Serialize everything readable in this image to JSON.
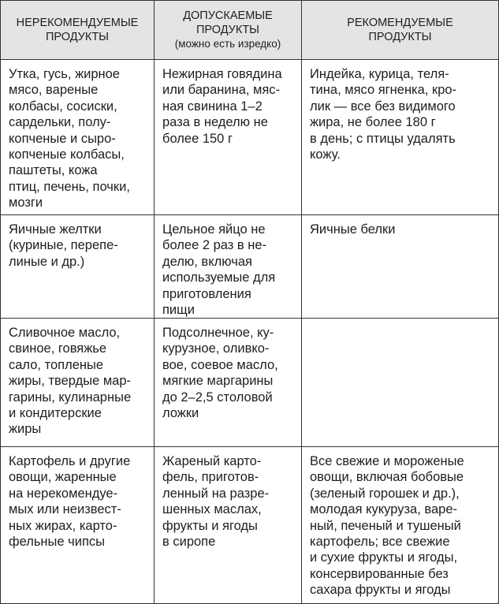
{
  "table": {
    "columns": [
      {
        "title": "НЕРЕКОМЕНДУЕМЫЕ\nПРОДУКТЫ"
      },
      {
        "title": "ДОПУСКАЕМЫЕ\nПРОДУКТЫ",
        "note": "(можно есть изредко)"
      },
      {
        "title": "РЕКОМЕНДУЕМЫЕ\nПРОДУКТЫ"
      }
    ],
    "rows": [
      [
        "Утка, гусь, жирное\nмясо, вареные\nколбасы, сосиски,\nсардельки, полу-\nкопченые и сыро-\nкопченые колбасы,\nпаштеты, кожа\nптиц, печень, почки,\nмозги",
        "Нежирная говядина\nили баранина, мяс-\nная свинина 1–2\nраза в неделю не\nболее 150 г",
        "Индейка, курица, теля-\nтина, мясо ягненка, кро-\nлик — все без видимого\nжира, не более 180 г\nв день; с птицы удалять\nкожу."
      ],
      [
        "Яичные желтки\n(куриные, перепе-\nлиные и др.)",
        "Цельное яйцо не\nболее 2 раз в не-\nделю, включая\nиспользуемые для\nприготовления\nпищи",
        "Яичные белки"
      ],
      [
        "Сливочное масло,\nсвиное, говяжье\nсало, топленые\nжиры, твердые мар-\nгарины, кулинарные\nи кондитерские\nжиры",
        "Подсолнечное, ку-\nкурузное, оливко-\nвое, соевое масло,\nмягкие маргарины\nдо 2–2,5 столовой\nложки"
      ],
      [
        "Картофель и другие\nовощи, жаренные\nна нерекомендуе-\nмых или неизвест-\nных жирах, карто-\nфельные чипсы",
        "Жареный карто-\nфель, приготов-\nленный на разре-\nшенных маслах,\nфрукты и ягоды\nв сиропе",
        "Все свежие и мороженые\nовощи, включая бобовые\n(зеленый горошек и др.),\nмолодая кукуруза, варе-\nный, печеный и тушеный\nкартофель; все свежие\nи сухие фрукты и ягоды,\nконсервированные без\nсахара фрукты и ягоды"
      ]
    ]
  }
}
